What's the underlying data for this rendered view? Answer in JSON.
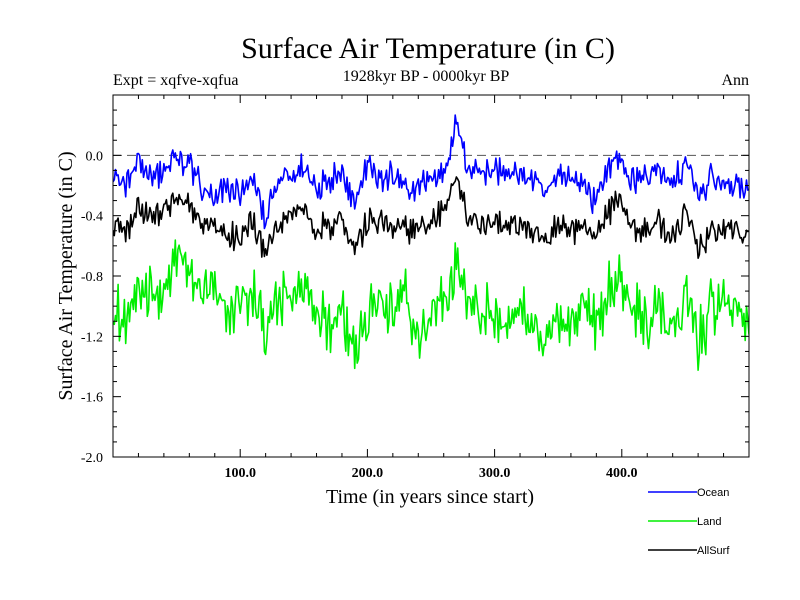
{
  "chart_data": {
    "type": "line",
    "title": "Surface Air Temperature (in C)",
    "subtitle": "1928kyr BP - 0000kyr BP",
    "left_label": "Expt = xqfve-xqfua",
    "right_label": "Ann",
    "xlabel": "Time (in years since start)",
    "ylabel": "Surface Air Temperature (in C)",
    "xlim": [
      0,
      500
    ],
    "ylim": [
      -2.0,
      0.4
    ],
    "x_ticks": [
      100,
      200,
      300,
      400
    ],
    "x_tick_labels": [
      "100.0",
      "200.0",
      "300.0",
      "400.0"
    ],
    "y_ticks": [
      -2.0,
      -1.6,
      -1.2,
      -0.8,
      -0.4,
      0.0
    ],
    "y_tick_labels": [
      "-2.0",
      "-1.6",
      "-1.2",
      "-0.8",
      "-0.4",
      "0.0"
    ],
    "zero_line": 0.0,
    "legend_position": "bottom-right",
    "x": [
      0,
      10,
      20,
      30,
      40,
      50,
      60,
      70,
      80,
      90,
      100,
      110,
      120,
      130,
      140,
      150,
      160,
      170,
      180,
      190,
      200,
      210,
      220,
      230,
      240,
      250,
      260,
      270,
      280,
      290,
      300,
      310,
      320,
      330,
      340,
      350,
      360,
      370,
      380,
      390,
      400,
      410,
      420,
      430,
      440,
      450,
      460,
      470,
      480,
      490,
      500
    ],
    "series": [
      {
        "name": "Ocean",
        "color": "#0000ff",
        "values": [
          -0.12,
          -0.2,
          -0.05,
          -0.15,
          -0.1,
          -0.02,
          -0.08,
          -0.2,
          -0.3,
          -0.22,
          -0.25,
          -0.18,
          -0.42,
          -0.2,
          -0.12,
          -0.08,
          -0.2,
          -0.15,
          -0.1,
          -0.3,
          -0.05,
          -0.18,
          -0.12,
          -0.25,
          -0.2,
          -0.15,
          -0.1,
          0.22,
          -0.1,
          -0.12,
          -0.08,
          -0.15,
          -0.1,
          -0.18,
          -0.25,
          -0.12,
          -0.15,
          -0.2,
          -0.3,
          -0.05,
          -0.02,
          -0.2,
          -0.12,
          -0.1,
          -0.2,
          -0.05,
          -0.25,
          -0.15,
          -0.18,
          -0.2,
          -0.25
        ]
      },
      {
        "name": "Land",
        "color": "#00ee00",
        "values": [
          -1.0,
          -1.1,
          -0.95,
          -0.85,
          -0.95,
          -0.7,
          -0.8,
          -0.85,
          -0.95,
          -1.05,
          -1.0,
          -0.9,
          -1.2,
          -1.0,
          -0.95,
          -0.9,
          -1.05,
          -1.1,
          -1.0,
          -1.3,
          -1.05,
          -0.95,
          -1.1,
          -0.95,
          -1.2,
          -1.05,
          -0.9,
          -0.75,
          -0.95,
          -1.0,
          -1.05,
          -1.1,
          -1.0,
          -1.15,
          -1.25,
          -1.05,
          -1.1,
          -1.0,
          -1.15,
          -0.9,
          -0.85,
          -1.05,
          -1.1,
          -1.0,
          -1.15,
          -0.95,
          -1.2,
          -1.05,
          -1.0,
          -1.0,
          -1.15
        ]
      },
      {
        "name": "AllSurf",
        "color": "#000000",
        "values": [
          -0.45,
          -0.5,
          -0.35,
          -0.4,
          -0.38,
          -0.3,
          -0.35,
          -0.45,
          -0.5,
          -0.55,
          -0.52,
          -0.45,
          -0.65,
          -0.5,
          -0.4,
          -0.35,
          -0.5,
          -0.45,
          -0.4,
          -0.6,
          -0.45,
          -0.42,
          -0.48,
          -0.5,
          -0.5,
          -0.45,
          -0.35,
          -0.15,
          -0.4,
          -0.45,
          -0.42,
          -0.48,
          -0.45,
          -0.5,
          -0.6,
          -0.45,
          -0.5,
          -0.48,
          -0.55,
          -0.35,
          -0.3,
          -0.48,
          -0.5,
          -0.45,
          -0.55,
          -0.4,
          -0.6,
          -0.5,
          -0.48,
          -0.5,
          -0.55
        ]
      }
    ]
  }
}
